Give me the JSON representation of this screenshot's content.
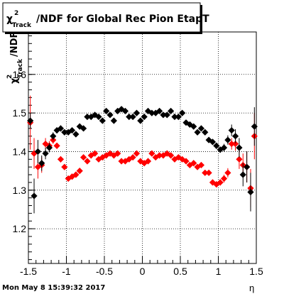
{
  "title": {
    "chi": "χ",
    "sup": "2",
    "sub": "Track",
    "rest": "/NDF for Global Rec Pion EtapT"
  },
  "ylabel": {
    "chi": "χ",
    "sup": "2",
    "sub": "Track",
    "rest": "/NDF"
  },
  "xlabel": "η",
  "timestamp": "Mon May  8 15:39:32 2017",
  "colors": {
    "series_black": "#000000",
    "series_red": "#ff0000",
    "grid": "#000000"
  },
  "chart_data": {
    "type": "scatter",
    "title": "χ²_Track/NDF for Global Rec Pion EtapT",
    "xlabel": "η",
    "ylabel": "χ²_Track/NDF",
    "xlim": [
      -1.5,
      1.5
    ],
    "ylim": [
      1.11,
      1.71
    ],
    "xticks": [
      "-1.5",
      "-1",
      "-0.5",
      "0",
      "0.5",
      "1",
      "1.5"
    ],
    "xtick_values": [
      -1.5,
      -1,
      -0.5,
      0,
      0.5,
      1,
      1.5
    ],
    "yticks": [
      "1.2",
      "1.3",
      "1.4",
      "1.5",
      "1.6"
    ],
    "ytick_values": [
      1.2,
      1.3,
      1.4,
      1.5,
      1.6
    ],
    "grid": true,
    "x": [
      -1.475,
      -1.425,
      -1.375,
      -1.325,
      -1.275,
      -1.225,
      -1.175,
      -1.125,
      -1.075,
      -1.025,
      -0.975,
      -0.925,
      -0.875,
      -0.825,
      -0.775,
      -0.725,
      -0.675,
      -0.625,
      -0.575,
      -0.525,
      -0.475,
      -0.425,
      -0.375,
      -0.325,
      -0.275,
      -0.225,
      -0.175,
      -0.125,
      -0.075,
      -0.025,
      0.025,
      0.075,
      0.125,
      0.175,
      0.225,
      0.275,
      0.325,
      0.375,
      0.425,
      0.475,
      0.525,
      0.575,
      0.625,
      0.675,
      0.725,
      0.775,
      0.825,
      0.875,
      0.925,
      0.975,
      1.025,
      1.075,
      1.125,
      1.175,
      1.225,
      1.275,
      1.325,
      1.375,
      1.425,
      1.475
    ],
    "series": [
      {
        "color": "#000000",
        "marker": "diamond",
        "values": [
          1.48,
          1.285,
          1.4,
          1.37,
          1.395,
          1.41,
          1.44,
          1.455,
          1.46,
          1.45,
          1.45,
          1.455,
          1.445,
          1.465,
          1.46,
          1.49,
          1.49,
          1.495,
          1.49,
          1.48,
          1.505,
          1.495,
          1.48,
          1.505,
          1.51,
          1.505,
          1.49,
          1.49,
          1.5,
          1.48,
          1.49,
          1.505,
          1.5,
          1.5,
          1.505,
          1.495,
          1.495,
          1.505,
          1.49,
          1.49,
          1.5,
          1.475,
          1.47,
          1.465,
          1.45,
          1.46,
          1.45,
          1.43,
          1.425,
          1.415,
          1.405,
          1.41,
          1.43,
          1.455,
          1.44,
          1.41,
          1.34,
          1.36,
          1.295,
          1.465
        ],
        "errors": [
          0.02,
          0.045,
          0.03,
          0.02,
          0.015,
          0.012,
          0.01,
          0.008,
          0.008,
          0.007,
          0.006,
          0.006,
          0.006,
          0.006,
          0.006,
          0.006,
          0.006,
          0.006,
          0.006,
          0.006,
          0.006,
          0.006,
          0.006,
          0.006,
          0.006,
          0.006,
          0.006,
          0.006,
          0.006,
          0.006,
          0.006,
          0.006,
          0.006,
          0.006,
          0.006,
          0.006,
          0.006,
          0.006,
          0.006,
          0.006,
          0.006,
          0.006,
          0.006,
          0.006,
          0.006,
          0.006,
          0.006,
          0.006,
          0.007,
          0.008,
          0.008,
          0.01,
          0.012,
          0.015,
          0.018,
          0.025,
          0.03,
          0.04,
          0.05,
          0.05
        ]
      },
      {
        "color": "#ff0000",
        "marker": "diamond",
        "values": [
          1.475,
          1.395,
          1.36,
          1.365,
          1.42,
          1.415,
          1.43,
          1.415,
          1.38,
          1.36,
          1.33,
          1.335,
          1.34,
          1.35,
          1.385,
          1.375,
          1.39,
          1.395,
          1.38,
          1.385,
          1.39,
          1.395,
          1.39,
          1.395,
          1.375,
          1.375,
          1.38,
          1.385,
          1.395,
          1.375,
          1.37,
          1.375,
          1.395,
          1.385,
          1.39,
          1.39,
          1.395,
          1.39,
          1.38,
          1.385,
          1.38,
          1.375,
          1.365,
          1.37,
          1.36,
          1.365,
          1.345,
          1.345,
          1.32,
          1.315,
          1.32,
          1.33,
          1.345,
          1.42,
          1.42,
          1.38,
          1.365,
          1.36,
          1.305,
          1.44
        ],
        "errors": [
          0.07,
          0.04,
          0.03,
          0.02,
          0.015,
          0.012,
          0.01,
          0.008,
          0.008,
          0.007,
          0.006,
          0.006,
          0.006,
          0.006,
          0.006,
          0.006,
          0.006,
          0.006,
          0.006,
          0.006,
          0.006,
          0.006,
          0.006,
          0.006,
          0.006,
          0.006,
          0.006,
          0.006,
          0.006,
          0.006,
          0.006,
          0.006,
          0.006,
          0.006,
          0.006,
          0.006,
          0.006,
          0.006,
          0.006,
          0.006,
          0.006,
          0.006,
          0.006,
          0.006,
          0.006,
          0.006,
          0.006,
          0.006,
          0.007,
          0.008,
          0.008,
          0.01,
          0.012,
          0.015,
          0.018,
          0.025,
          0.03,
          0.04,
          0.05,
          0.06
        ]
      }
    ]
  }
}
